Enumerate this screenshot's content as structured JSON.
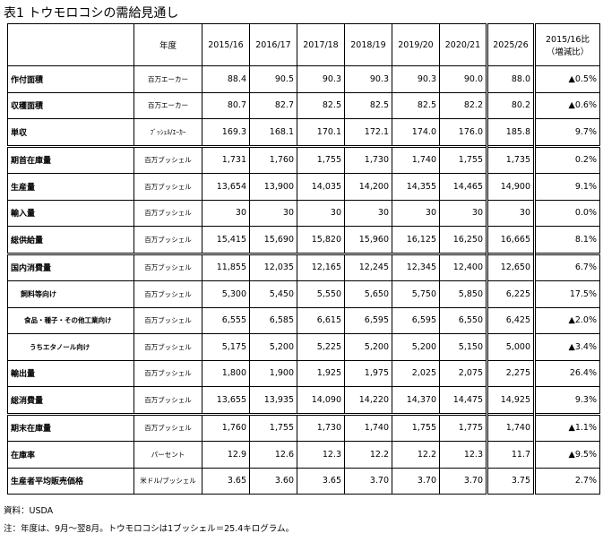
{
  "title": "表1 トウモロコシの需給見通し",
  "header": {
    "unit_col": "年度",
    "years": [
      "2015/16",
      "2016/17",
      "2017/18",
      "2018/19",
      "2019/20",
      "2020/21",
      "2025/26"
    ],
    "change_line1": "2015/16比",
    "change_line2": "（増減比）"
  },
  "rows": [
    {
      "label": "作付面積",
      "unit": "百万エーカー",
      "values": [
        "88.4",
        "90.5",
        "90.3",
        "90.3",
        "90.3",
        "90.0",
        "88.0"
      ],
      "change": "▲0.5%"
    },
    {
      "label": "収穫面積",
      "unit": "百万エーカー",
      "values": [
        "80.7",
        "82.7",
        "82.5",
        "82.5",
        "82.5",
        "82.2",
        "80.2"
      ],
      "change": "▲0.6%"
    },
    {
      "label": "単収",
      "unit": "ﾌﾞｯｼｪﾙ/ｴｰｶｰ",
      "values": [
        "169.3",
        "168.1",
        "170.1",
        "172.1",
        "174.0",
        "176.0",
        "185.8"
      ],
      "change": "9.7%"
    },
    {
      "label": "期首在庫量",
      "unit": "百万ブッシェル",
      "values": [
        "1,731",
        "1,760",
        "1,755",
        "1,730",
        "1,740",
        "1,755",
        "1,735"
      ],
      "change": "0.2%"
    },
    {
      "label": "生産量",
      "unit": "百万ブッシェル",
      "values": [
        "13,654",
        "13,900",
        "14,035",
        "14,200",
        "14,355",
        "14,465",
        "14,900"
      ],
      "change": "9.1%"
    },
    {
      "label": "輸入量",
      "unit": "百万ブッシェル",
      "values": [
        "30",
        "30",
        "30",
        "30",
        "30",
        "30",
        "30"
      ],
      "change": "0.0%"
    },
    {
      "label": "総供給量",
      "unit": "百万ブッシェル",
      "values": [
        "15,415",
        "15,690",
        "15,820",
        "15,960",
        "16,125",
        "16,250",
        "16,665"
      ],
      "change": "8.1%"
    },
    {
      "label": "国内消費量",
      "unit": "百万ブッシェル",
      "values": [
        "11,855",
        "12,035",
        "12,165",
        "12,245",
        "12,345",
        "12,400",
        "12,650"
      ],
      "change": "6.7%"
    },
    {
      "label": "飼料等向け",
      "unit": "百万ブッシェル",
      "values": [
        "5,300",
        "5,450",
        "5,550",
        "5,650",
        "5,750",
        "5,850",
        "6,225"
      ],
      "change": "17.5%"
    },
    {
      "label": "食品・種子・その他工業向け",
      "unit": "百万ブッシェル",
      "values": [
        "6,555",
        "6,585",
        "6,615",
        "6,595",
        "6,595",
        "6,550",
        "6,425"
      ],
      "change": "▲2.0%"
    },
    {
      "label": "うちエタノール向け",
      "unit": "百万ブッシェル",
      "values": [
        "5,175",
        "5,200",
        "5,225",
        "5,200",
        "5,200",
        "5,150",
        "5,000"
      ],
      "change": "▲3.4%"
    },
    {
      "label": "輸出量",
      "unit": "百万ブッシェル",
      "values": [
        "1,800",
        "1,900",
        "1,925",
        "1,975",
        "2,025",
        "2,075",
        "2,275"
      ],
      "change": "26.4%"
    },
    {
      "label": "総消費量",
      "unit": "百万ブッシェル",
      "values": [
        "13,655",
        "13,935",
        "14,090",
        "14,220",
        "14,370",
        "14,475",
        "14,925"
      ],
      "change": "9.3%"
    },
    {
      "label": "期末在庫量",
      "unit": "百万ブッシェル",
      "values": [
        "1,760",
        "1,755",
        "1,730",
        "1,740",
        "1,755",
        "1,775",
        "1,740"
      ],
      "change": "▲1.1%"
    },
    {
      "label": "在庫率",
      "unit": "パーセント",
      "values": [
        "12.9",
        "12.6",
        "12.3",
        "12.2",
        "12.2",
        "12.3",
        "11.7"
      ],
      "change": "▲9.5%"
    },
    {
      "label": "生産者平均販売価格",
      "unit": "米ドル/ブッシェル",
      "values": [
        "3.65",
        "3.60",
        "3.65",
        "3.70",
        "3.70",
        "3.70",
        "3.75"
      ],
      "change": "2.7%"
    }
  ],
  "source": "資料：USDA",
  "note": "注：年度は、9月～翌8月。トウモロコシは1ブッシェル＝25.4キログラム。"
}
